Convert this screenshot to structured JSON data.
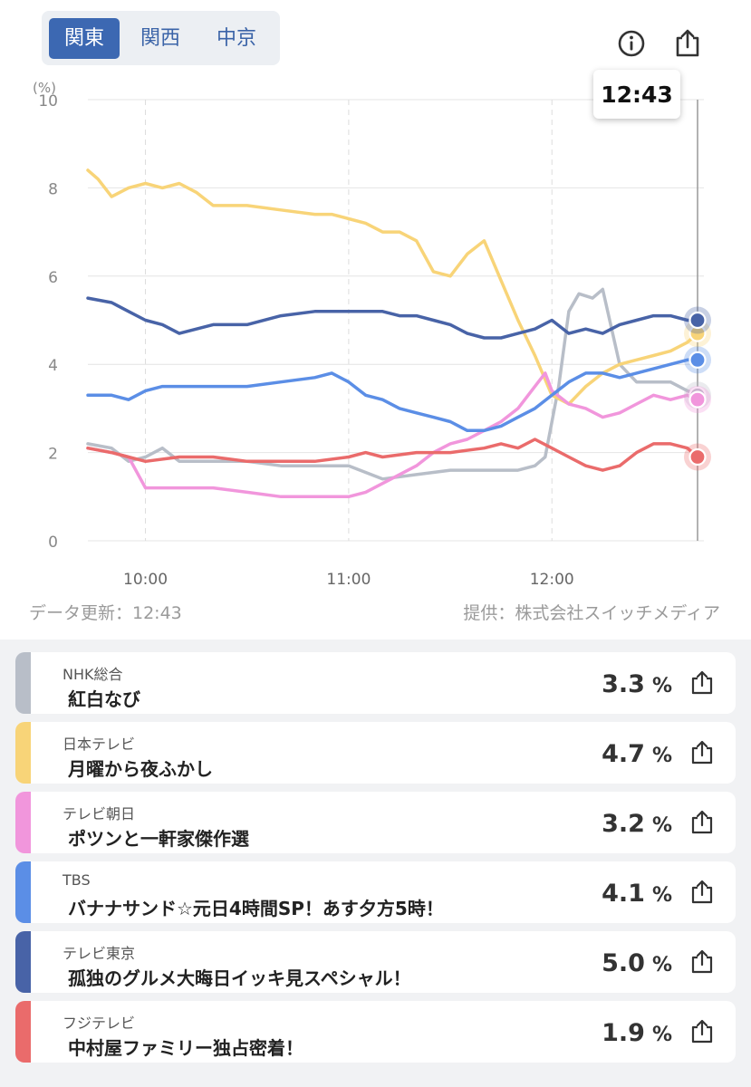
{
  "regions": {
    "items": [
      "関東",
      "関西",
      "中京"
    ],
    "active": 0
  },
  "icons": {
    "info": "info-icon",
    "share": "share-icon"
  },
  "tooltip_time": "12:43",
  "footer": {
    "updated": "データ更新：12:43",
    "provider": "提供：株式会社スイッチメディア"
  },
  "chart_data": {
    "type": "line",
    "ylabel": "(%)",
    "ylim": [
      0,
      10
    ],
    "yticks": [
      0,
      2,
      4,
      6,
      8,
      10
    ],
    "xlim": [
      "09:43",
      "12:43"
    ],
    "xticks": [
      "10:00",
      "11:00",
      "12:00"
    ],
    "grid": true,
    "series": [
      {
        "name": "NHK総合",
        "color": "#b8bec8",
        "x": [
          "09:43",
          "09:50",
          "09:55",
          "10:00",
          "10:05",
          "10:10",
          "10:20",
          "10:30",
          "10:40",
          "10:50",
          "11:00",
          "11:10",
          "11:20",
          "11:30",
          "11:40",
          "11:50",
          "11:55",
          "11:58",
          "12:02",
          "12:05",
          "12:08",
          "12:12",
          "12:15",
          "12:20",
          "12:25",
          "12:30",
          "12:35",
          "12:40",
          "12:43"
        ],
        "values": [
          2.2,
          2.1,
          1.8,
          1.9,
          2.1,
          1.8,
          1.8,
          1.8,
          1.7,
          1.7,
          1.7,
          1.4,
          1.5,
          1.6,
          1.6,
          1.6,
          1.7,
          1.9,
          3.5,
          5.2,
          5.6,
          5.5,
          5.7,
          4.0,
          3.6,
          3.6,
          3.6,
          3.4,
          3.3
        ]
      },
      {
        "name": "日本テレビ",
        "color": "#f8d478",
        "x": [
          "09:43",
          "09:46",
          "09:50",
          "09:55",
          "10:00",
          "10:05",
          "10:10",
          "10:15",
          "10:20",
          "10:30",
          "10:40",
          "10:50",
          "10:55",
          "11:00",
          "11:05",
          "11:10",
          "11:15",
          "11:20",
          "11:25",
          "11:30",
          "11:35",
          "11:40",
          "11:45",
          "11:50",
          "11:55",
          "12:00",
          "12:05",
          "12:10",
          "12:15",
          "12:20",
          "12:25",
          "12:30",
          "12:35",
          "12:40",
          "12:43"
        ],
        "values": [
          8.4,
          8.2,
          7.8,
          8.0,
          8.1,
          8.0,
          8.1,
          7.9,
          7.6,
          7.6,
          7.5,
          7.4,
          7.4,
          7.3,
          7.2,
          7.0,
          7.0,
          6.8,
          6.1,
          6.0,
          6.5,
          6.8,
          5.9,
          5.0,
          4.2,
          3.3,
          3.1,
          3.5,
          3.8,
          4.0,
          4.1,
          4.2,
          4.3,
          4.5,
          4.7
        ]
      },
      {
        "name": "テレビ朝日",
        "color": "#f196dc",
        "x": [
          "09:43",
          "09:50",
          "09:55",
          "10:00",
          "10:05",
          "10:10",
          "10:20",
          "10:30",
          "10:40",
          "10:50",
          "11:00",
          "11:05",
          "11:10",
          "11:15",
          "11:20",
          "11:25",
          "11:30",
          "11:35",
          "11:40",
          "11:45",
          "11:50",
          "11:55",
          "11:58",
          "12:00",
          "12:05",
          "12:10",
          "12:15",
          "12:20",
          "12:25",
          "12:30",
          "12:35",
          "12:40",
          "12:43"
        ],
        "values": [
          2.1,
          2.0,
          1.9,
          1.2,
          1.2,
          1.2,
          1.2,
          1.1,
          1.0,
          1.0,
          1.0,
          1.1,
          1.3,
          1.5,
          1.7,
          2.0,
          2.2,
          2.3,
          2.5,
          2.7,
          3.0,
          3.5,
          3.8,
          3.4,
          3.1,
          3.0,
          2.8,
          2.9,
          3.1,
          3.3,
          3.2,
          3.3,
          3.2
        ]
      },
      {
        "name": "TBS",
        "color": "#5b8ee6",
        "x": [
          "09:43",
          "09:50",
          "09:55",
          "10:00",
          "10:05",
          "10:10",
          "10:20",
          "10:30",
          "10:40",
          "10:50",
          "10:55",
          "11:00",
          "11:05",
          "11:10",
          "11:15",
          "11:20",
          "11:25",
          "11:30",
          "11:35",
          "11:40",
          "11:45",
          "11:50",
          "11:55",
          "12:00",
          "12:05",
          "12:10",
          "12:15",
          "12:20",
          "12:25",
          "12:30",
          "12:35",
          "12:40",
          "12:43"
        ],
        "values": [
          3.3,
          3.3,
          3.2,
          3.4,
          3.5,
          3.5,
          3.5,
          3.5,
          3.6,
          3.7,
          3.8,
          3.6,
          3.3,
          3.2,
          3.0,
          2.9,
          2.8,
          2.7,
          2.5,
          2.5,
          2.6,
          2.8,
          3.0,
          3.3,
          3.6,
          3.8,
          3.8,
          3.7,
          3.8,
          3.9,
          4.0,
          4.1,
          4.1
        ]
      },
      {
        "name": "テレビ東京",
        "color": "#4863a7",
        "x": [
          "09:43",
          "09:50",
          "09:55",
          "10:00",
          "10:05",
          "10:10",
          "10:20",
          "10:30",
          "10:40",
          "10:50",
          "11:00",
          "11:05",
          "11:10",
          "11:15",
          "11:20",
          "11:25",
          "11:30",
          "11:35",
          "11:40",
          "11:45",
          "11:50",
          "11:55",
          "12:00",
          "12:05",
          "12:10",
          "12:15",
          "12:20",
          "12:25",
          "12:30",
          "12:35",
          "12:40",
          "12:43"
        ],
        "values": [
          5.5,
          5.4,
          5.2,
          5.0,
          4.9,
          4.7,
          4.9,
          4.9,
          5.1,
          5.2,
          5.2,
          5.2,
          5.2,
          5.1,
          5.1,
          5.0,
          4.9,
          4.7,
          4.6,
          4.6,
          4.7,
          4.8,
          5.0,
          4.7,
          4.8,
          4.7,
          4.9,
          5.0,
          5.1,
          5.1,
          5.0,
          5.0
        ]
      },
      {
        "name": "フジテレビ",
        "color": "#ea6b6b",
        "x": [
          "09:43",
          "09:50",
          "09:55",
          "10:00",
          "10:10",
          "10:20",
          "10:30",
          "10:40",
          "10:50",
          "11:00",
          "11:05",
          "11:10",
          "11:20",
          "11:30",
          "11:40",
          "11:45",
          "11:50",
          "11:55",
          "12:00",
          "12:05",
          "12:10",
          "12:15",
          "12:20",
          "12:25",
          "12:30",
          "12:35",
          "12:40",
          "12:43"
        ],
        "values": [
          2.1,
          2.0,
          1.9,
          1.8,
          1.9,
          1.9,
          1.8,
          1.8,
          1.8,
          1.9,
          2.0,
          1.9,
          2.0,
          2.0,
          2.1,
          2.2,
          2.1,
          2.3,
          2.1,
          1.9,
          1.7,
          1.6,
          1.7,
          2.0,
          2.2,
          2.2,
          2.1,
          1.9
        ]
      }
    ]
  },
  "channels": [
    {
      "channel": "NHK総合",
      "program": "紅白なび",
      "rating": "3.3",
      "unit": "%",
      "color": "#b8bec8"
    },
    {
      "channel": "日本テレビ",
      "program": "月曜から夜ふかし",
      "rating": "4.7",
      "unit": "%",
      "color": "#f8d478"
    },
    {
      "channel": "テレビ朝日",
      "program": "ポツンと一軒家傑作選",
      "rating": "3.2",
      "unit": "%",
      "color": "#f196dc"
    },
    {
      "channel": "TBS",
      "program": "バナナサンド☆元日4時間SP！あす夕方5時！",
      "rating": "4.1",
      "unit": "%",
      "color": "#5b8ee6"
    },
    {
      "channel": "テレビ東京",
      "program": "孤独のグルメ大晦日イッキ見スペシャル！",
      "rating": "5.0",
      "unit": "%",
      "color": "#4863a7"
    },
    {
      "channel": "フジテレビ",
      "program": "中村屋ファミリー独占密着！",
      "rating": "1.9",
      "unit": "%",
      "color": "#ea6b6b"
    }
  ]
}
